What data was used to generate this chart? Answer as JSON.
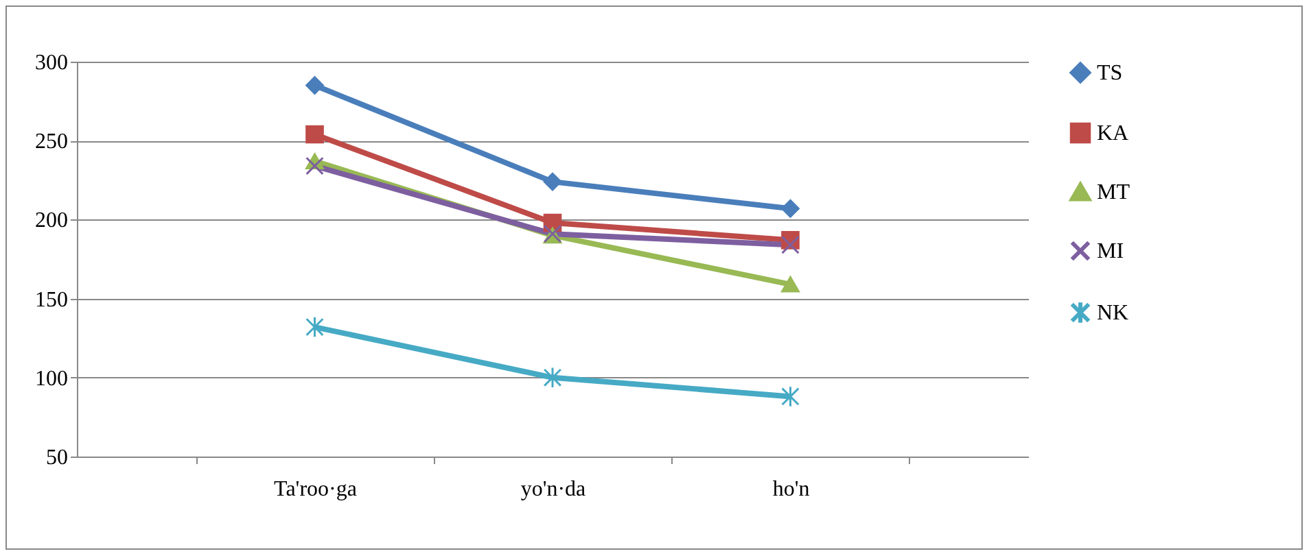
{
  "chart_data": {
    "type": "line",
    "categories": [
      "Ta'roo·ga",
      "yo'n·da",
      "ho'n"
    ],
    "ylim": [
      50,
      300
    ],
    "yticks": [
      50,
      100,
      150,
      200,
      250,
      300
    ],
    "grid": "y",
    "legend": "right",
    "series": [
      {
        "name": "TS",
        "color": "#4a7ebb",
        "marker": "diamond",
        "values": [
          285,
          224,
          207
        ]
      },
      {
        "name": "KA",
        "color": "#be4b48",
        "marker": "square",
        "values": [
          254,
          198,
          187
        ]
      },
      {
        "name": "MT",
        "color": "#98b954",
        "marker": "triangle",
        "values": [
          237,
          190,
          159
        ]
      },
      {
        "name": "MI",
        "color": "#7d5fa0",
        "marker": "cross",
        "values": [
          234,
          191,
          184
        ]
      },
      {
        "name": "NK",
        "color": "#46aac5",
        "marker": "cross",
        "values": [
          132,
          100,
          88
        ]
      }
    ]
  }
}
